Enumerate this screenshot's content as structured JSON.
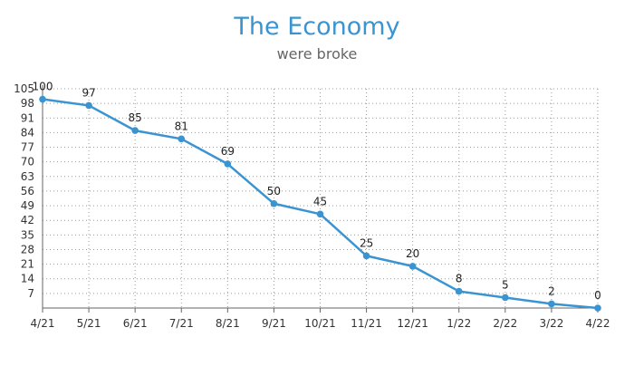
{
  "chart_data": {
    "type": "line",
    "title": "The Economy",
    "subtitle": "were broke",
    "xlabel": "",
    "ylabel": "",
    "categories": [
      "4/21",
      "5/21",
      "6/21",
      "7/21",
      "8/21",
      "9/21",
      "10/21",
      "11/21",
      "12/21",
      "1/22",
      "2/22",
      "3/22",
      "4/22"
    ],
    "values": [
      100,
      97,
      85,
      81,
      69,
      50,
      45,
      25,
      20,
      8,
      5,
      2,
      0
    ],
    "ylim": [
      0,
      105
    ],
    "yticks": [
      7,
      14,
      21,
      28,
      35,
      42,
      49,
      56,
      63,
      70,
      77,
      84,
      91,
      98,
      105
    ],
    "grid": true,
    "legend": "none",
    "colors": {
      "line": "#3a94d2",
      "marker": "#3a94d2",
      "title": "#3a94d2"
    }
  }
}
